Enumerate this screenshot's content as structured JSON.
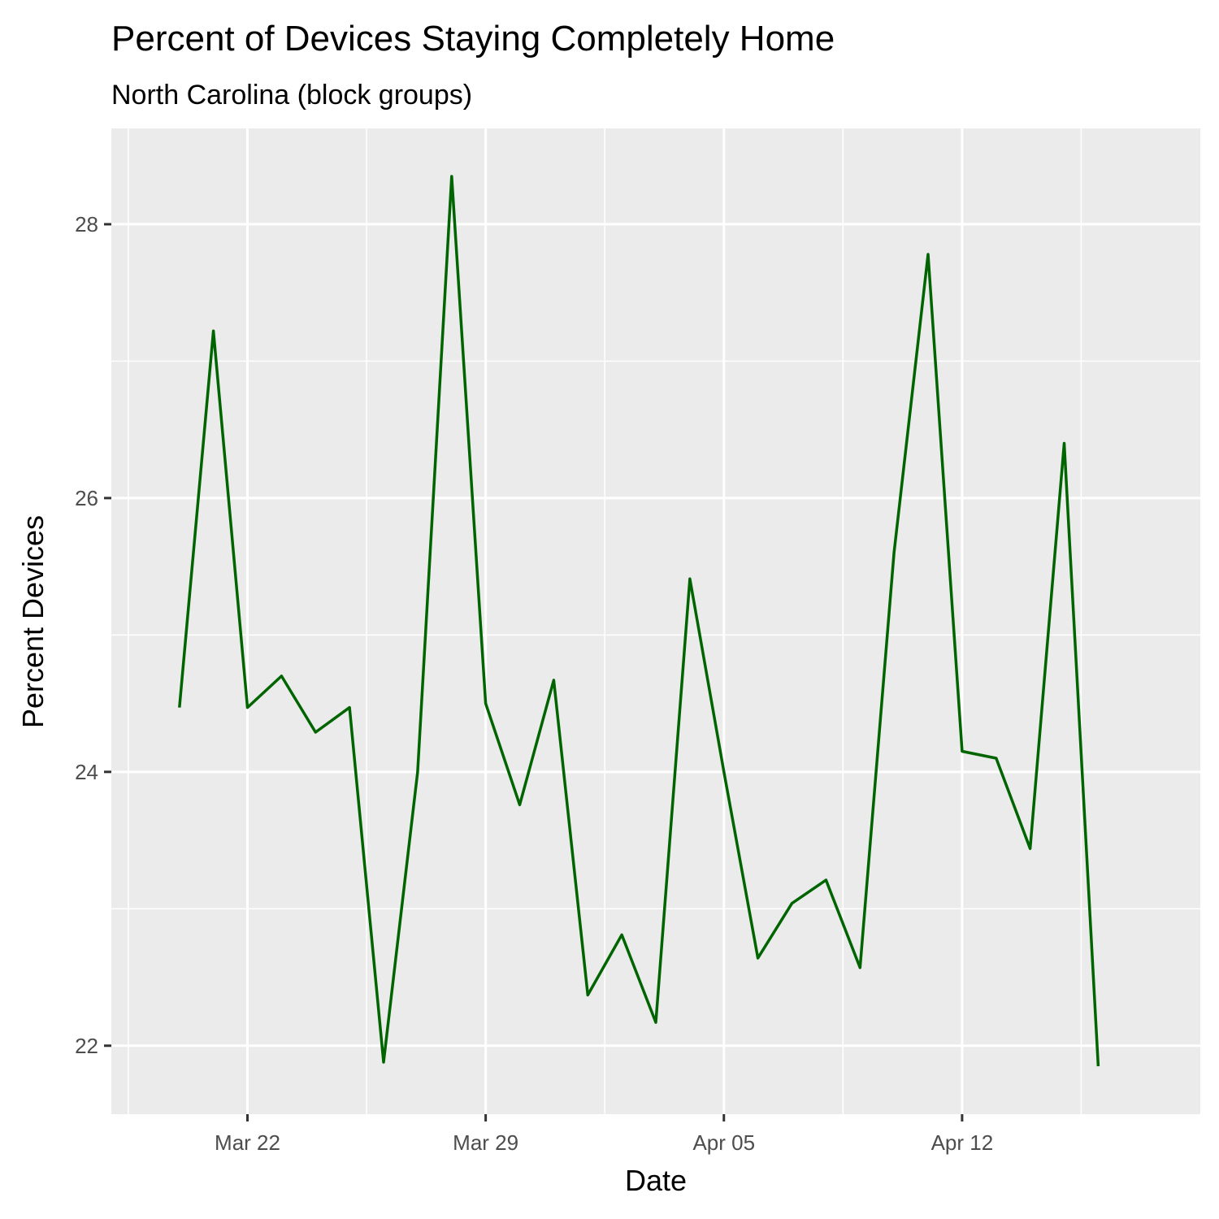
{
  "chart_data": {
    "type": "line",
    "title": "Percent of Devices Staying Completely Home",
    "subtitle": "North Carolina (block groups)",
    "xlabel": "Date",
    "ylabel": "Percent Devices",
    "x_ticks": [
      {
        "date": "2020-03-22",
        "label": "Mar 22"
      },
      {
        "date": "2020-03-29",
        "label": "Mar 29"
      },
      {
        "date": "2020-04-05",
        "label": "Apr 05"
      },
      {
        "date": "2020-04-12",
        "label": "Apr 12"
      }
    ],
    "y_ticks": [
      {
        "value": 22,
        "label": "22"
      },
      {
        "value": 24,
        "label": "24"
      },
      {
        "value": 26,
        "label": "26"
      },
      {
        "value": 28,
        "label": "28"
      }
    ],
    "xlim": [
      "2020-03-18",
      "2020-04-19"
    ],
    "ylim": [
      21.5,
      28.7
    ],
    "grid": true,
    "line_color": "#006400",
    "panel_color": "#ebebeb",
    "series": [
      {
        "x": [
          "2020-03-20",
          "2020-03-21",
          "2020-03-22",
          "2020-03-23",
          "2020-03-24",
          "2020-03-25",
          "2020-03-26",
          "2020-03-27",
          "2020-03-28",
          "2020-03-29",
          "2020-03-30",
          "2020-03-31",
          "2020-04-01",
          "2020-04-02",
          "2020-04-03",
          "2020-04-04",
          "2020-04-05",
          "2020-04-06",
          "2020-04-07",
          "2020-04-08",
          "2020-04-09",
          "2020-04-10",
          "2020-04-11",
          "2020-04-12",
          "2020-04-13",
          "2020-04-14",
          "2020-04-15",
          "2020-04-16"
        ],
        "values": [
          24.47,
          27.22,
          24.47,
          24.7,
          24.29,
          24.47,
          21.88,
          24.0,
          28.35,
          24.5,
          23.76,
          24.67,
          22.37,
          22.81,
          22.17,
          25.41,
          24.0,
          22.64,
          23.04,
          23.21,
          22.57,
          25.6,
          27.78,
          24.15,
          24.1,
          23.44,
          26.4,
          21.85
        ]
      }
    ]
  }
}
